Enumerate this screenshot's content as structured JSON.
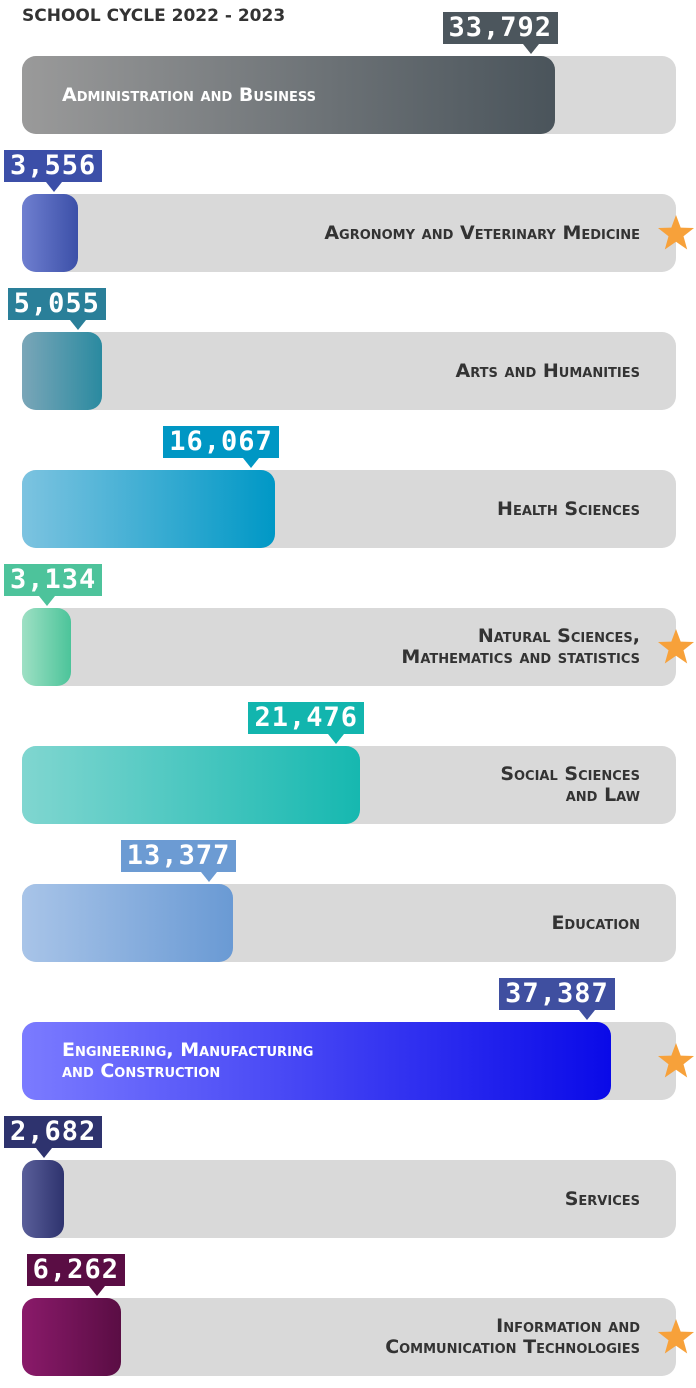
{
  "chart_data": {
    "type": "bar",
    "orientation": "horizontal",
    "title": "SCHOOL CYCLE 2022 - 2023",
    "categories": [
      "Administration and Business",
      "Agronomy and Veterinary Medicine",
      "Arts and Humanities",
      "Health Sciences",
      "Natural Sciences,\nMathematics and statistics",
      "Social Sciences\nand Law",
      "Education",
      "Engineering, Manufacturing\nand Construction",
      "Services",
      "Information and\nCommunication Technologies"
    ],
    "values": [
      33792,
      3556,
      5055,
      16067,
      3134,
      21476,
      13377,
      37387,
      2682,
      6262
    ],
    "value_labels": [
      "33,792",
      "3,556",
      "5,055",
      "16,067",
      "3,134",
      "21,476",
      "13,377",
      "37,387",
      "2,682",
      "6,262"
    ],
    "xlim": [
      0,
      41500
    ],
    "colors": [
      "#4a545b",
      "#3c50a8",
      "#2a8aa0",
      "#0098c6",
      "#4cc49a",
      "#16b8b0",
      "#6a9ad4",
      "#0a0ae8",
      "#2e336e",
      "#5a0d44"
    ],
    "gradient_start": [
      "#9a9a9a",
      "#6f7fd0",
      "#7aa6b8",
      "#7cc3e0",
      "#9ee0c4",
      "#80d6d0",
      "#a8c4e8",
      "#7b7bff",
      "#5a5f9a",
      "#8a1a6a"
    ],
    "label_colors": [
      "#4c565d",
      "#3c4fa8",
      "#2a7f99",
      "#0097c4",
      "#4dc39b",
      "#12b5ae",
      "#6c9bd3",
      "#3f4fa0",
      "#2e336e",
      "#5a0d44"
    ],
    "highlighted": [
      false,
      true,
      false,
      false,
      true,
      false,
      false,
      true,
      false,
      true
    ],
    "highlight_color": "#f7a13a"
  }
}
